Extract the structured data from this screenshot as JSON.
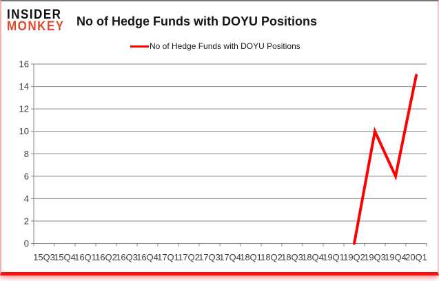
{
  "branding": {
    "logo_line1": "INSIDER",
    "logo_line2": "MONKEY",
    "logo_color_primary": "#0d0d0d",
    "logo_color_secondary": "#df4a2e"
  },
  "header": {
    "title": "No of Hedge Funds with DOYU Positions"
  },
  "legend": {
    "label": "No of Hedge Funds with DOYU Positions",
    "line_color": "#ff0000"
  },
  "chart_data": {
    "type": "line",
    "title": "No of Hedge Funds with DOYU Positions",
    "categories": [
      "15Q3",
      "15Q4",
      "16Q1",
      "16Q2",
      "16Q3",
      "16Q4",
      "17Q1",
      "17Q2",
      "17Q3",
      "17Q4",
      "18Q1",
      "18Q2",
      "18Q3",
      "18Q4",
      "19Q1",
      "19Q2",
      "19Q3",
      "19Q4",
      "20Q1"
    ],
    "series": [
      {
        "name": "No of Hedge Funds with DOYU Positions",
        "color": "#ff0000",
        "values": [
          null,
          null,
          null,
          null,
          null,
          null,
          null,
          null,
          null,
          null,
          null,
          null,
          null,
          null,
          null,
          0,
          10,
          6,
          15
        ]
      }
    ],
    "xlabel": "",
    "ylabel": "",
    "ylim": [
      0,
      16
    ],
    "ytick_step": 2,
    "yticks": [
      0,
      2,
      4,
      6,
      8,
      10,
      12,
      14,
      16
    ],
    "grid": "horizontal",
    "legend_position": "top-center",
    "colors": {
      "gridline": "#848484",
      "axis": "#848484",
      "tick_label": "#3d3d3d"
    }
  }
}
